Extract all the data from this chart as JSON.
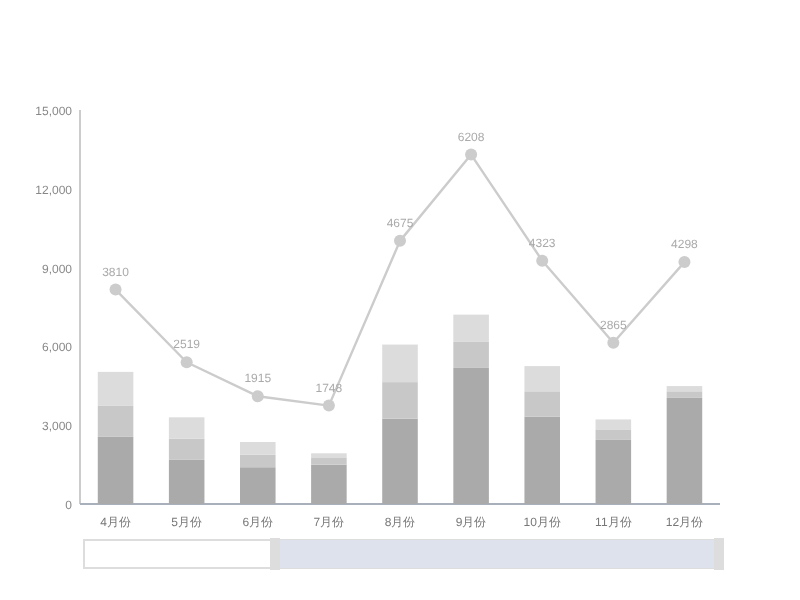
{
  "chart_data": {
    "type": "bar",
    "stacked": true,
    "categories": [
      "4月份",
      "5月份",
      "6月份",
      "7月份",
      "8月份",
      "9月份",
      "10月份",
      "11月份",
      "12月份"
    ],
    "series": [
      {
        "color": "#aaaaaa",
        "values": [
          2570,
          1680,
          1400,
          1500,
          3250,
          5180,
          3320,
          2440,
          4040
        ]
      },
      {
        "color": "#c8c8c8",
        "values": [
          1180,
          810,
          480,
          250,
          1390,
          990,
          970,
          400,
          250
        ]
      },
      {
        "color": "#dcdcdc",
        "values": [
          1280,
          810,
          480,
          180,
          1430,
          1040,
          960,
          380,
          200
        ]
      },
      {
        "type": "line",
        "axis": "y2",
        "color": "#cccccc",
        "marker": "circle",
        "values": [
          3810,
          2519,
          1915,
          1748,
          4675,
          6208,
          4323,
          2865,
          4298
        ],
        "value_labels": [
          "3810",
          "2519",
          "1915",
          "1748",
          "4675",
          "6208",
          "4323",
          "2865",
          "4298"
        ]
      }
    ],
    "ylim": [
      0,
      15000
    ],
    "y2lim": [
      0,
      7000
    ],
    "yticks": [
      {
        "value": 0,
        "label": "0"
      },
      {
        "value": 3000,
        "label": "3,000"
      },
      {
        "value": 6000,
        "label": "6,000"
      },
      {
        "value": 9000,
        "label": "9,000"
      },
      {
        "value": 12000,
        "label": "12,000"
      },
      {
        "value": 15000,
        "label": "15,000"
      }
    ]
  }
}
